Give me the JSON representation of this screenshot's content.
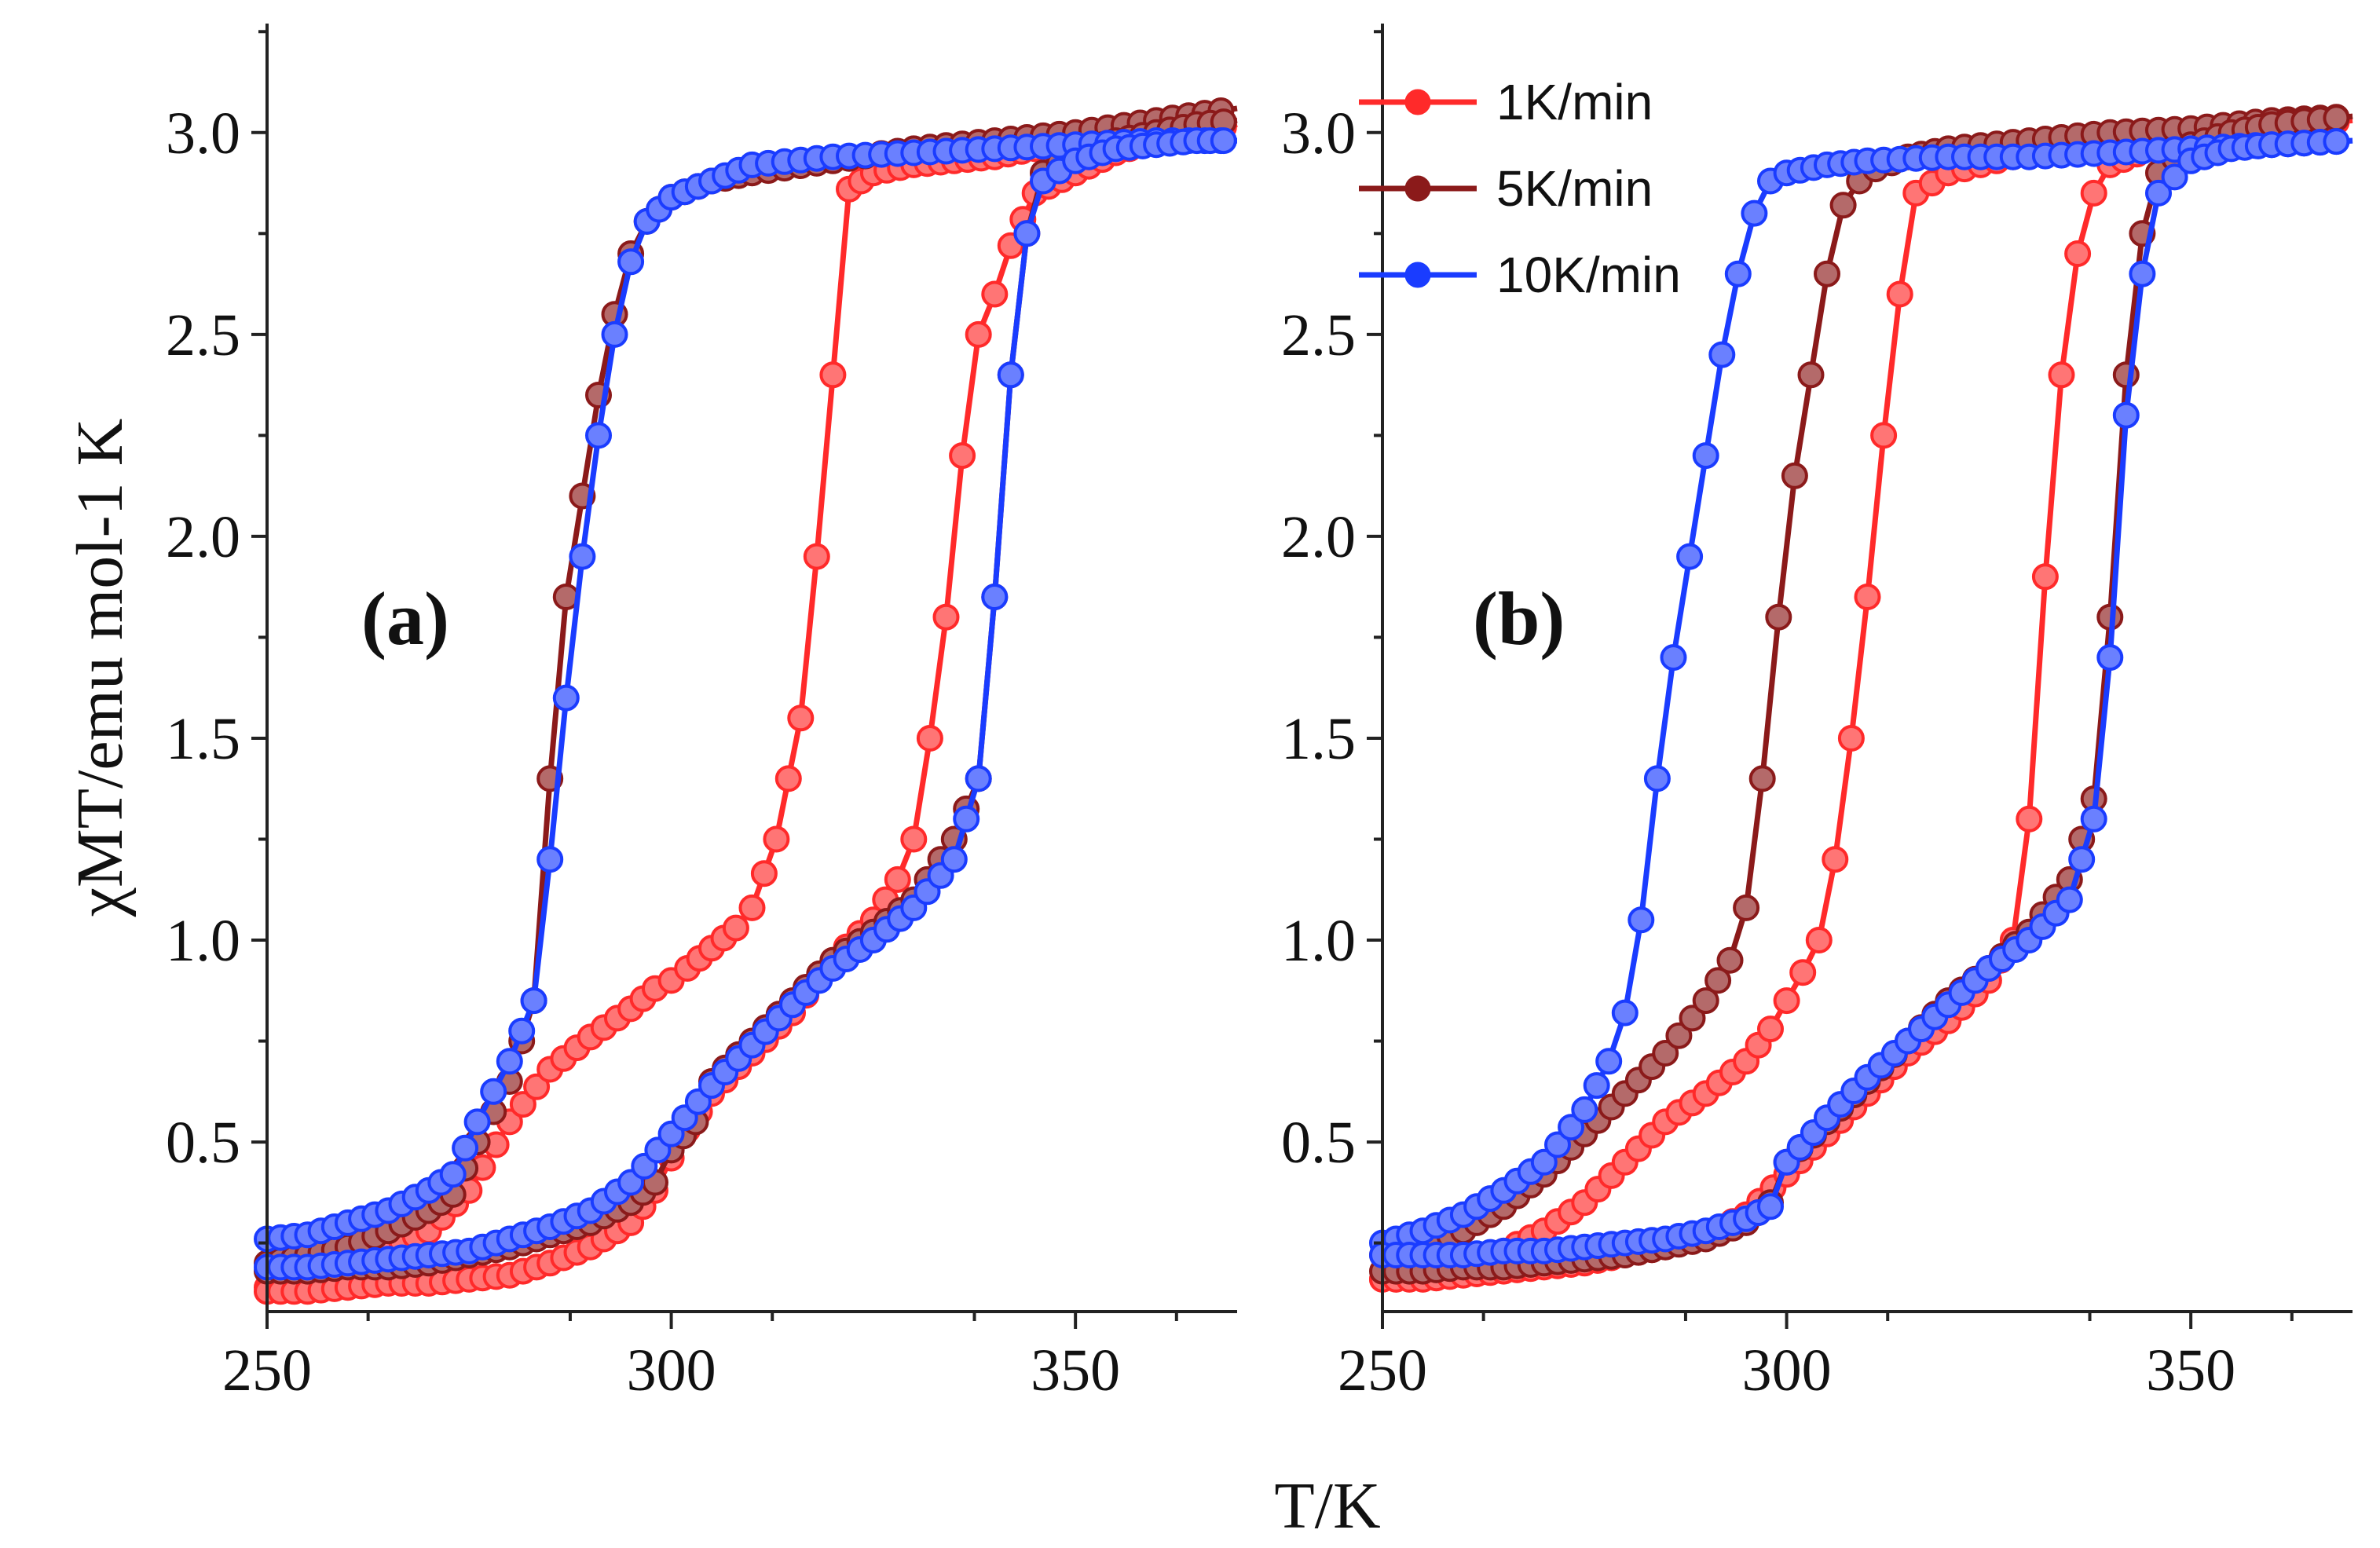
{
  "chart_data": [
    {
      "type": "line",
      "panel_label": "(a)",
      "xlabel": "T/K",
      "ylabel": "χMT/emu mol-1 K",
      "xlim": [
        250,
        370
      ],
      "ylim": [
        0.08,
        3.27
      ],
      "xticks": [
        250,
        300,
        350
      ],
      "yticks": [
        0.5,
        1.0,
        1.5,
        2.0,
        2.5,
        3.0
      ],
      "series": [
        {
          "name": "1K/min",
          "color": "#ff2a2a",
          "segments": [
            {
              "x": [
                250,
                255,
                260,
                265,
                270,
                275,
                280,
                285,
                290,
                295,
                298,
                300,
                302,
                305,
                308,
                310,
                313,
                316,
                318,
                320,
                322,
                325,
                330,
                335,
                340,
                345,
                350,
                355,
                360,
                365,
                370
              ],
              "y": [
                0.14,
                0.16,
                0.2,
                0.24,
                0.28,
                0.38,
                0.55,
                0.68,
                0.76,
                0.83,
                0.88,
                0.9,
                0.93,
                0.98,
                1.03,
                1.08,
                1.25,
                1.55,
                1.95,
                2.4,
                2.86,
                2.9,
                2.92,
                2.93,
                2.94,
                2.96,
                2.97,
                2.98,
                3.0,
                3.02,
                3.03
              ]
            },
            {
              "x": [
                250,
                255,
                260,
                265,
                270,
                275,
                280,
                285,
                290,
                295,
                298,
                300,
                302,
                305,
                310,
                315,
                320,
                325,
                328,
                330,
                332,
                334,
                336,
                338,
                340,
                342,
                345,
                350,
                355,
                360,
                365,
                370
              ],
              "y": [
                0.13,
                0.13,
                0.14,
                0.15,
                0.15,
                0.16,
                0.17,
                0.2,
                0.24,
                0.3,
                0.38,
                0.46,
                0.53,
                0.62,
                0.72,
                0.82,
                0.95,
                1.05,
                1.15,
                1.25,
                1.5,
                1.8,
                2.2,
                2.5,
                2.6,
                2.72,
                2.85,
                2.9,
                2.95,
                2.98,
                3.0,
                3.02
              ]
            }
          ]
        },
        {
          "name": "5K/min",
          "color": "#8b1a1a",
          "segments": [
            {
              "x": [
                250,
                255,
                260,
                265,
                270,
                273,
                276,
                280,
                283,
                285,
                287,
                289,
                291,
                293,
                295,
                297,
                300,
                305,
                310,
                320,
                330,
                340,
                350,
                360,
                370
              ],
              "y": [
                0.2,
                0.22,
                0.24,
                0.28,
                0.33,
                0.37,
                0.5,
                0.65,
                0.85,
                1.4,
                1.85,
                2.1,
                2.35,
                2.55,
                2.7,
                2.78,
                2.84,
                2.88,
                2.9,
                2.93,
                2.96,
                2.98,
                3.0,
                3.03,
                3.06
              ]
            },
            {
              "x": [
                250,
                255,
                260,
                265,
                270,
                275,
                280,
                285,
                290,
                295,
                298,
                300,
                303,
                305,
                310,
                315,
                320,
                325,
                330,
                335,
                338,
                340,
                342,
                344,
                346,
                350,
                355,
                360,
                365,
                370
              ],
              "y": [
                0.18,
                0.18,
                0.19,
                0.19,
                0.2,
                0.22,
                0.24,
                0.27,
                0.3,
                0.35,
                0.4,
                0.48,
                0.55,
                0.65,
                0.75,
                0.85,
                0.95,
                1.02,
                1.1,
                1.25,
                1.4,
                1.85,
                2.4,
                2.75,
                2.9,
                2.95,
                2.98,
                3.0,
                3.02,
                3.03
              ]
            }
          ]
        },
        {
          "name": "10K/min",
          "color": "#1a3cff",
          "segments": [
            {
              "x": [
                250,
                255,
                260,
                265,
                270,
                273,
                276,
                280,
                283,
                285,
                287,
                289,
                291,
                293,
                295,
                297,
                300,
                305,
                310,
                320,
                330,
                340,
                350,
                360,
                370
              ],
              "y": [
                0.26,
                0.27,
                0.3,
                0.33,
                0.38,
                0.42,
                0.55,
                0.7,
                0.85,
                1.2,
                1.6,
                1.95,
                2.25,
                2.5,
                2.68,
                2.78,
                2.84,
                2.88,
                2.92,
                2.94,
                2.95,
                2.96,
                2.97,
                2.98,
                2.98
              ]
            },
            {
              "x": [
                250,
                255,
                260,
                265,
                270,
                275,
                280,
                285,
                290,
                295,
                300,
                305,
                310,
                315,
                320,
                325,
                330,
                335,
                338,
                340,
                342,
                344,
                346,
                350,
                355,
                360,
                365,
                370
              ],
              "y": [
                0.19,
                0.19,
                0.2,
                0.21,
                0.22,
                0.23,
                0.26,
                0.29,
                0.33,
                0.4,
                0.52,
                0.64,
                0.74,
                0.84,
                0.93,
                1.0,
                1.08,
                1.2,
                1.4,
                1.85,
                2.4,
                2.75,
                2.88,
                2.93,
                2.96,
                2.97,
                2.98,
                2.98
              ]
            }
          ]
        }
      ]
    },
    {
      "type": "line",
      "panel_label": "(b)",
      "xlabel": "T/K",
      "ylabel": "",
      "xlim": [
        250,
        370
      ],
      "ylim": [
        0.08,
        3.27
      ],
      "xticks": [
        250,
        300,
        350
      ],
      "yticks": [
        0.5,
        1.0,
        1.5,
        2.0,
        2.5,
        3.0
      ],
      "legend": {
        "position": "top-left",
        "entries": [
          "1K/min",
          "5K/min",
          "10K/min"
        ]
      },
      "series": [
        {
          "name": "1K/min",
          "color": "#ff2a2a",
          "segments": [
            {
              "x": [
                250,
                255,
                260,
                265,
                270,
                275,
                280,
                285,
                290,
                295,
                298,
                300,
                302,
                304,
                306,
                308,
                310,
                312,
                314,
                316,
                320,
                330,
                340,
                350,
                360,
                370
              ],
              "y": [
                0.16,
                0.17,
                0.19,
                0.23,
                0.28,
                0.35,
                0.45,
                0.55,
                0.62,
                0.7,
                0.78,
                0.85,
                0.92,
                1.0,
                1.2,
                1.5,
                1.85,
                2.25,
                2.6,
                2.85,
                2.9,
                2.95,
                2.97,
                2.99,
                3.01,
                3.03
              ]
            },
            {
              "x": [
                250,
                255,
                260,
                265,
                270,
                275,
                280,
                285,
                290,
                295,
                300,
                305,
                310,
                315,
                320,
                325,
                328,
                330,
                332,
                334,
                336,
                338,
                340,
                345,
                350,
                360,
                370
              ],
              "y": [
                0.16,
                0.16,
                0.17,
                0.18,
                0.19,
                0.2,
                0.22,
                0.24,
                0.27,
                0.32,
                0.42,
                0.52,
                0.62,
                0.72,
                0.8,
                0.9,
                1.0,
                1.3,
                1.9,
                2.4,
                2.7,
                2.85,
                2.92,
                2.96,
                2.99,
                3.02,
                3.04
              ]
            }
          ]
        },
        {
          "name": "5K/min",
          "color": "#8b1a1a",
          "segments": [
            {
              "x": [
                250,
                255,
                260,
                265,
                270,
                275,
                280,
                285,
                290,
                293,
                295,
                297,
                299,
                301,
                303,
                305,
                307,
                309,
                311,
                315,
                320,
                330,
                340,
                350,
                360,
                370
              ],
              "y": [
                0.22,
                0.24,
                0.28,
                0.34,
                0.42,
                0.52,
                0.62,
                0.72,
                0.85,
                0.95,
                1.08,
                1.4,
                1.8,
                2.15,
                2.4,
                2.65,
                2.82,
                2.88,
                2.91,
                2.94,
                2.96,
                2.98,
                3.0,
                3.01,
                3.03,
                3.04
              ]
            },
            {
              "x": [
                250,
                255,
                260,
                265,
                270,
                275,
                280,
                285,
                290,
                295,
                298,
                300,
                305,
                310,
                315,
                320,
                325,
                330,
                335,
                338,
                340,
                342,
                344,
                346,
                350,
                355,
                360,
                370
              ],
              "y": [
                0.18,
                0.18,
                0.19,
                0.19,
                0.2,
                0.21,
                0.22,
                0.24,
                0.26,
                0.3,
                0.35,
                0.45,
                0.55,
                0.65,
                0.75,
                0.85,
                0.93,
                1.02,
                1.15,
                1.35,
                1.8,
                2.4,
                2.75,
                2.9,
                2.97,
                3.0,
                3.02,
                3.04
              ]
            }
          ]
        },
        {
          "name": "10K/min",
          "color": "#1a3cff",
          "segments": [
            {
              "x": [
                250,
                255,
                260,
                265,
                270,
                275,
                278,
                280,
                282,
                284,
                286,
                288,
                290,
                292,
                294,
                296,
                298,
                300,
                305,
                310,
                320,
                330,
                340,
                350,
                360,
                370
              ],
              "y": [
                0.25,
                0.28,
                0.32,
                0.38,
                0.45,
                0.58,
                0.7,
                0.82,
                1.05,
                1.4,
                1.7,
                1.95,
                2.2,
                2.45,
                2.65,
                2.8,
                2.88,
                2.9,
                2.92,
                2.93,
                2.94,
                2.94,
                2.95,
                2.96,
                2.97,
                2.98
              ]
            },
            {
              "x": [
                250,
                255,
                260,
                265,
                270,
                275,
                280,
                285,
                290,
                295,
                298,
                300,
                305,
                310,
                315,
                320,
                325,
                330,
                335,
                338,
                340,
                342,
                344,
                346,
                350,
                355,
                360,
                370
              ],
              "y": [
                0.22,
                0.22,
                0.22,
                0.23,
                0.23,
                0.24,
                0.25,
                0.26,
                0.28,
                0.31,
                0.34,
                0.45,
                0.56,
                0.66,
                0.75,
                0.84,
                0.93,
                1.0,
                1.1,
                1.3,
                1.7,
                2.3,
                2.65,
                2.85,
                2.93,
                2.96,
                2.97,
                2.98
              ]
            }
          ]
        }
      ]
    }
  ]
}
